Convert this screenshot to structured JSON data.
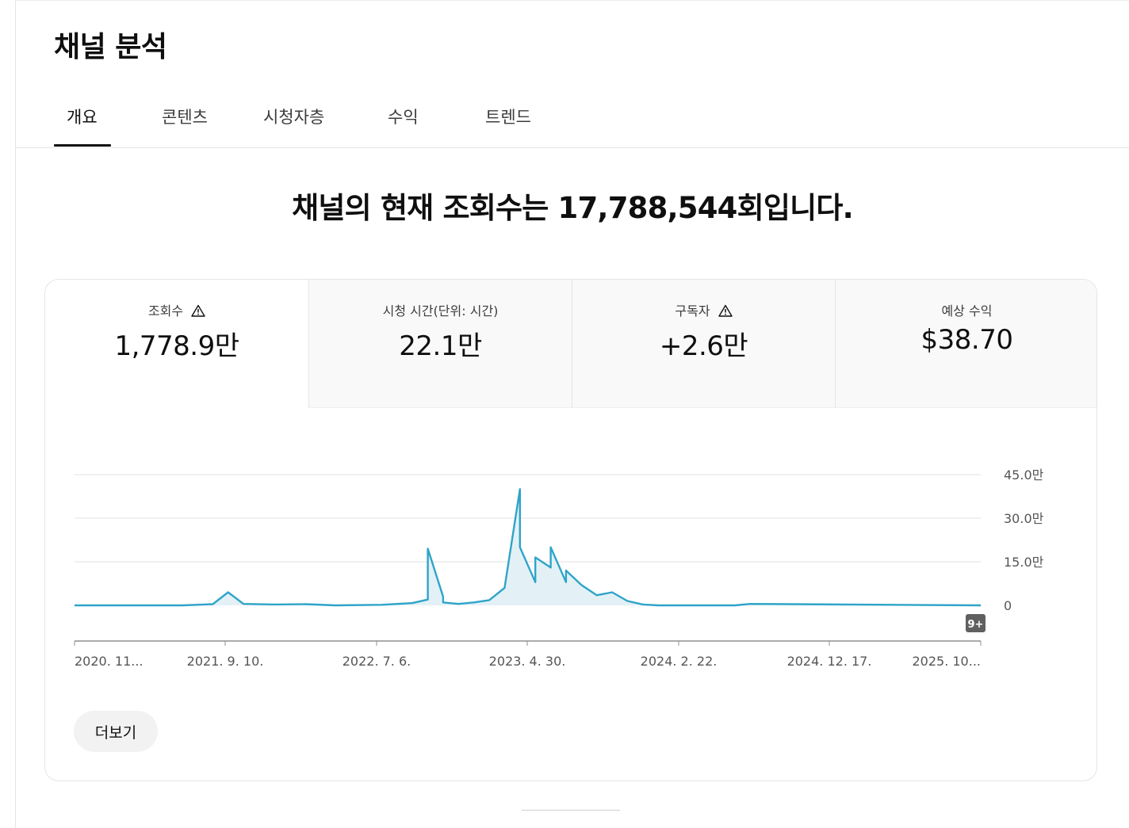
{
  "page": {
    "title": "채널 분석"
  },
  "tabs": [
    {
      "label": "개요",
      "active": true
    },
    {
      "label": "콘텐츠",
      "active": false
    },
    {
      "label": "시청자층",
      "active": false
    },
    {
      "label": "수익",
      "active": false
    },
    {
      "label": "트렌드",
      "active": false
    }
  ],
  "headline": "채널의 현재 조회수는 17,788,544회입니다.",
  "metrics": [
    {
      "label": "조회수",
      "value": "1,778.9만",
      "icon": "warning-icon",
      "selected": true
    },
    {
      "label": "시청 시간(단위: 시간)",
      "value": "22.1만",
      "icon": "",
      "selected": false
    },
    {
      "label": "구독자",
      "value": "+2.6만",
      "icon": "warning-icon",
      "selected": false
    },
    {
      "label": "예상 수익",
      "value": "$38.70",
      "icon": "",
      "selected": false
    }
  ],
  "more_button": "더보기",
  "colors": {
    "series": "#2fa4c8",
    "fill": "#e3f1f7",
    "grid": "#e0e0e0",
    "axis": "#909090"
  },
  "chart_data": {
    "type": "area",
    "x_tick_labels": [
      "2020. 11...",
      "2021. 9. 10.",
      "2022. 7. 6.",
      "2023. 4. 30.",
      "2024. 2. 22.",
      "2024. 12. 17.",
      "2025. 10..."
    ],
    "y_tick_labels": [
      "0",
      "15.0만",
      "30.0만",
      "45.0만"
    ],
    "ylim": [
      0,
      450000
    ],
    "grid": true,
    "badge": "9+",
    "series": [
      {
        "x": [
          "2020-11",
          "2021-06",
          "2021-08",
          "2021-09",
          "2021-10",
          "2021-12",
          "2022-02",
          "2022-04",
          "2022-07",
          "2022-09",
          "2022-10",
          "2022-10",
          "2022-11",
          "2022-11",
          "2022-12",
          "2023-01",
          "2023-02",
          "2023-03",
          "2023-04",
          "2023-04",
          "2023-05",
          "2023-05",
          "2023-06",
          "2023-06",
          "2023-07",
          "2023-07",
          "2023-08",
          "2023-09",
          "2023-10",
          "2023-11",
          "2023-12",
          "2024-01",
          "2024-06",
          "2024-07",
          "2025-10"
        ],
        "values": [
          0,
          0,
          4000,
          45000,
          5000,
          3000,
          4000,
          0,
          2000,
          8000,
          20000,
          195000,
          30000,
          10000,
          5000,
          10000,
          18000,
          60000,
          400000,
          200000,
          80000,
          165000,
          130000,
          200000,
          80000,
          120000,
          70000,
          35000,
          45000,
          15000,
          3000,
          0,
          0,
          5000,
          0
        ]
      }
    ]
  }
}
